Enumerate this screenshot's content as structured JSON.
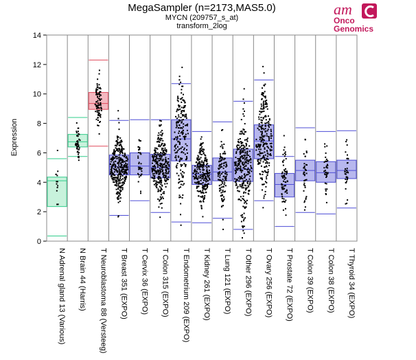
{
  "header": {
    "title": "MegaSampler (n=2173,MAS5.0)",
    "subtitle": "MYCN (209757_s_at)",
    "transform": "transform_2log"
  },
  "logo": {
    "mark": "am",
    "line1": "Onco",
    "line2": "Genomics",
    "color": "#c2185b"
  },
  "chart_data": {
    "type": "boxplot",
    "ylabel": "Expression",
    "ylim": [
      0,
      14
    ],
    "yticks": [
      0,
      2,
      4,
      6,
      8,
      10,
      12,
      14
    ],
    "grid": false,
    "colors": {
      "normal": "#2ecc8a",
      "tumor_high": "#e0485a",
      "tumor": "#4c4cd6"
    },
    "categories": [
      "N Adrenal gland 13 (Various)",
      "N Brain 44 (Harris)",
      "T Neuroblastoma 88 (Versteeg)",
      "T Breast 351 (EXPO)",
      "T Cervix 36 (EXPO)",
      "T Colon 315 (EXPO)",
      "T Endometrium 209 (EXPO)",
      "T Kidney 261 (EXPO)",
      "T Lung 121 (EXPO)",
      "T Other 296 (EXPO)",
      "T Ovary 256 (EXPO)",
      "T Prostate 72 (EXPO)",
      "T Colon 39 (EXPO)",
      "T Colon 38 (EXPO)",
      "T Thyroid 34 (EXPO)"
    ],
    "groups": [
      {
        "n": 13,
        "whisker_low": 0.35,
        "q1": 2.35,
        "median": 4.1,
        "q3": 4.35,
        "whisker_high": 5.6,
        "kind": "normal"
      },
      {
        "n": 44,
        "whisker_low": 5.75,
        "q1": 6.4,
        "median": 6.75,
        "q3": 7.25,
        "whisker_high": 8.4,
        "kind": "normal"
      },
      {
        "n": 88,
        "whisker_low": 6.45,
        "q1": 8.95,
        "median": 9.35,
        "q3": 10.1,
        "whisker_high": 12.3,
        "kind": "tumor_high"
      },
      {
        "n": 351,
        "whisker_low": 1.75,
        "q1": 4.5,
        "median": 5.05,
        "q3": 5.85,
        "whisker_high": 8.2,
        "kind": "tumor"
      },
      {
        "n": 36,
        "whisker_low": 2.75,
        "q1": 4.5,
        "median": 5.1,
        "q3": 6.0,
        "whisker_high": 8.25,
        "kind": "tumor"
      },
      {
        "n": 315,
        "whisker_low": 1.95,
        "q1": 4.3,
        "median": 5.0,
        "q3": 5.9,
        "whisker_high": 8.25,
        "kind": "tumor"
      },
      {
        "n": 209,
        "whisker_low": 1.3,
        "q1": 5.45,
        "median": 6.95,
        "q3": 8.25,
        "whisker_high": 10.7,
        "kind": "tumor"
      },
      {
        "n": 261,
        "whisker_low": 1.25,
        "q1": 3.85,
        "median": 4.55,
        "q3": 5.15,
        "whisker_high": 7.45,
        "kind": "tumor"
      },
      {
        "n": 121,
        "whisker_low": 1.55,
        "q1": 4.1,
        "median": 4.7,
        "q3": 5.65,
        "whisker_high": 8.1,
        "kind": "tumor"
      },
      {
        "n": 296,
        "whisker_low": 0.8,
        "q1": 4.05,
        "median": 4.9,
        "q3": 6.25,
        "whisker_high": 9.5,
        "kind": "tumor"
      },
      {
        "n": 256,
        "whisker_low": 2.75,
        "q1": 5.6,
        "median": 6.8,
        "q3": 7.9,
        "whisker_high": 10.95,
        "kind": "tumor"
      },
      {
        "n": 72,
        "whisker_low": 1.0,
        "q1": 3.0,
        "median": 3.85,
        "q3": 4.6,
        "whisker_high": 5.75,
        "kind": "tumor"
      },
      {
        "n": 39,
        "whisker_low": 1.95,
        "q1": 4.1,
        "median": 4.8,
        "q3": 5.5,
        "whisker_high": 7.7,
        "kind": "tumor"
      },
      {
        "n": 38,
        "whisker_low": 1.85,
        "q1": 4.0,
        "median": 4.65,
        "q3": 5.4,
        "whisker_high": 7.45,
        "kind": "tumor"
      },
      {
        "n": 34,
        "whisker_low": 2.25,
        "q1": 4.25,
        "median": 4.8,
        "q3": 5.5,
        "whisker_high": 7.5,
        "kind": "tumor"
      }
    ]
  }
}
